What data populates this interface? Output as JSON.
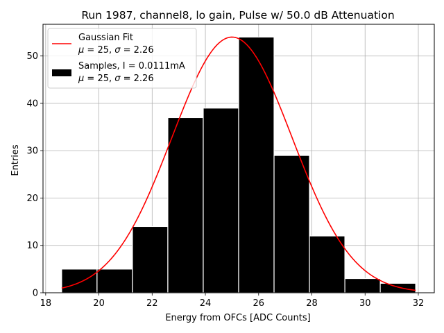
{
  "chart_data": {
    "type": "bar",
    "title": "Run 1987, channel8, lo gain, Pulse w/ 50.0 dB Attenuation",
    "xlabel": "Energy from OFCs [ADC Counts]",
    "ylabel": "Entries",
    "xlim": [
      17.9,
      32.6
    ],
    "ylim": [
      0,
      56.7
    ],
    "xticks": [
      18,
      20,
      22,
      24,
      26,
      28,
      30,
      32
    ],
    "yticks": [
      0,
      10,
      20,
      30,
      40,
      50
    ],
    "grid": true,
    "legend_position": "top-left",
    "histogram": {
      "name": "Samples, I = 0.0111mA",
      "stats": "μ = 25, σ = 2.26",
      "color": "#000000",
      "edge_color": "#ffffff",
      "bin_edges": [
        18.6,
        19.93,
        21.26,
        22.59,
        23.92,
        25.25,
        26.58,
        27.91,
        29.24,
        30.57,
        31.9
      ],
      "counts": [
        5,
        5,
        14,
        37,
        39,
        54,
        29,
        12,
        3,
        2
      ]
    },
    "fit": {
      "name": "Gaussian Fit",
      "stats": "μ = 25, σ = 2.26",
      "color": "#ff0000",
      "mu": 25.0,
      "sigma": 2.26,
      "amplitude": 54.0,
      "x_range": [
        18.6,
        31.9
      ]
    },
    "legend": {
      "fit_label": "Gaussian Fit",
      "fit_stats_mu": "μ",
      "fit_stats_rest": " = 25, ",
      "fit_stats_sigma": "σ",
      "fit_stats_tail": " = 2.26",
      "hist_label": "Samples, I = 0.0111mA",
      "hist_stats_mu": "μ",
      "hist_stats_rest": " = 25, ",
      "hist_stats_sigma": "σ",
      "hist_stats_tail": " = 2.26"
    }
  }
}
